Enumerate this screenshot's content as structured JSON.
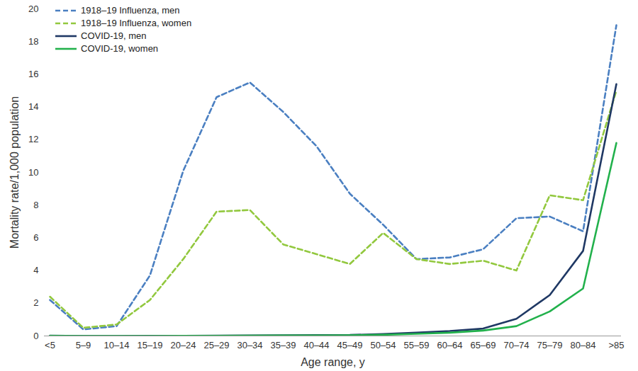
{
  "chart_data": {
    "type": "line",
    "x_label": "Age range, y",
    "y_label": "Mortality rate/1,000 population",
    "categories": [
      "<5",
      "5–9",
      "10–14",
      "15–19",
      "20–24",
      "25–29",
      "30–34",
      "35–39",
      "40–44",
      "45–49",
      "50–54",
      "55–59",
      "60–64",
      "65–69",
      "70–74",
      "75–79",
      "80–84",
      ">85"
    ],
    "series": [
      {
        "name": "1918–19 Influenza, men",
        "color": "#4a7fc1",
        "line_style": "dashed",
        "values": [
          2.2,
          0.4,
          0.6,
          3.7,
          10.1,
          14.6,
          15.5,
          13.7,
          11.6,
          8.7,
          6.8,
          4.7,
          4.8,
          5.3,
          7.2,
          7.3,
          6.4,
          19.0
        ]
      },
      {
        "name": "1918–19 Influenza, women",
        "color": "#92c83e",
        "line_style": "dashed",
        "values": [
          2.4,
          0.5,
          0.7,
          2.2,
          4.7,
          7.6,
          7.7,
          5.6,
          5.0,
          4.4,
          6.3,
          4.7,
          4.4,
          4.6,
          4.0,
          8.6,
          8.3,
          15.0
        ]
      },
      {
        "name": "COVID-19, men",
        "color": "#1f3864",
        "line_style": "solid",
        "values": [
          0.02,
          0.0,
          0.0,
          0.01,
          0.01,
          0.02,
          0.03,
          0.04,
          0.05,
          0.06,
          0.12,
          0.2,
          0.3,
          0.45,
          1.05,
          2.5,
          5.2,
          15.4
        ]
      },
      {
        "name": "COVID-19, women",
        "color": "#22b14c",
        "line_style": "solid",
        "values": [
          0.01,
          0.0,
          0.0,
          0.0,
          0.01,
          0.01,
          0.02,
          0.03,
          0.03,
          0.04,
          0.07,
          0.13,
          0.2,
          0.33,
          0.6,
          1.5,
          2.9,
          11.8
        ]
      }
    ],
    "ylim": [
      0,
      20
    ],
    "yticks": [
      0,
      2,
      4,
      6,
      8,
      10,
      12,
      14,
      16,
      18,
      20
    ],
    "grid": false,
    "legend": "top-left"
  }
}
